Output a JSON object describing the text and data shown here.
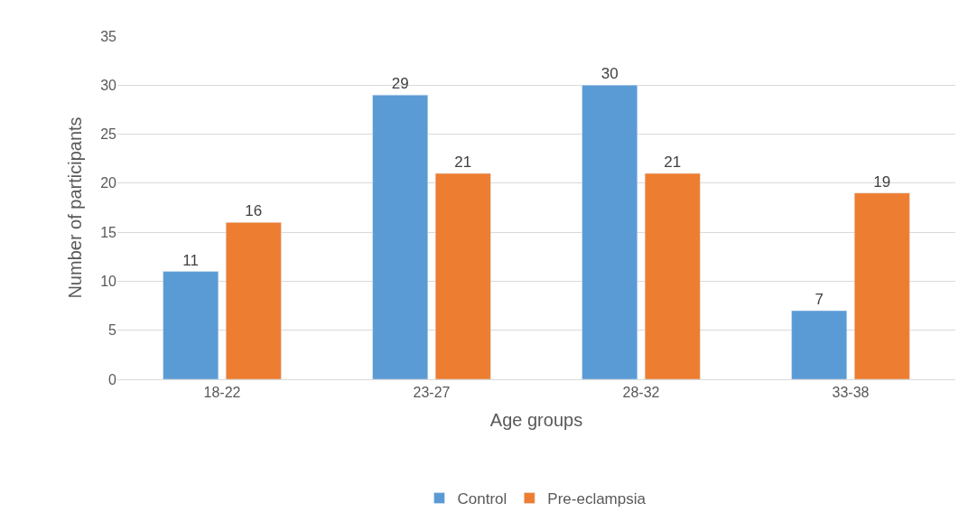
{
  "chart_data": {
    "type": "bar",
    "xlabel": "Age groups",
    "ylabel": "Number of participants",
    "categories": [
      "18-22",
      "23-27",
      "28-32",
      "33-38"
    ],
    "series": [
      {
        "name": "Control",
        "color": "#5b9bd5",
        "values": [
          11,
          29,
          30,
          7
        ]
      },
      {
        "name": "Pre-eclampsia",
        "color": "#ed7d31",
        "values": [
          16,
          21,
          21,
          19
        ]
      }
    ],
    "ylim": [
      0,
      35
    ],
    "yticks": [
      0,
      5,
      10,
      15,
      20,
      25,
      30,
      35
    ],
    "grid": "y",
    "legend": "bottom",
    "data_labels": true
  }
}
